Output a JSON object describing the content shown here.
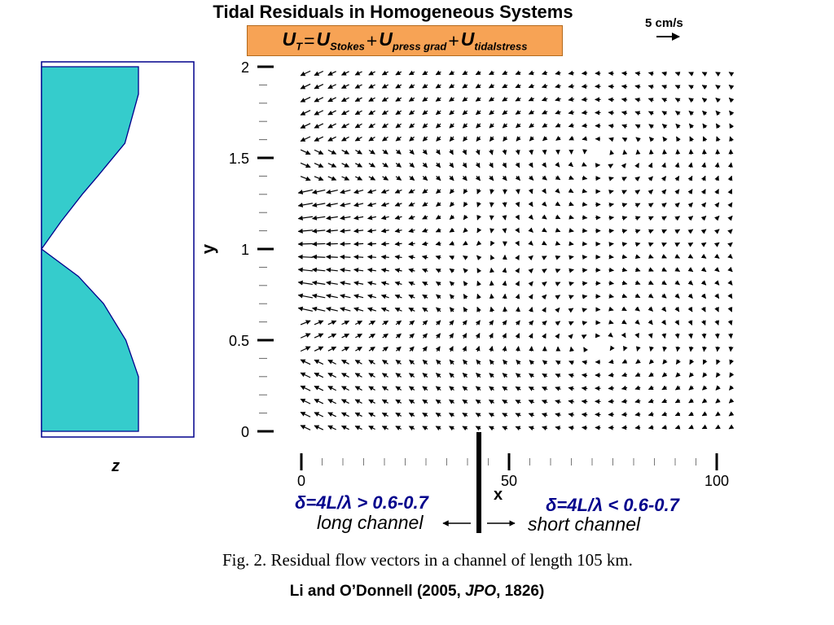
{
  "title": "Tidal Residuals in Homogeneous Systems",
  "equation": {
    "lhs_symbol": "U",
    "lhs_sub": "T",
    "eq_sign": "=",
    "terms": [
      {
        "symbol": "U",
        "sub": "Stokes"
      },
      {
        "symbol": "U",
        "sub": "press grad"
      },
      {
        "symbol": "U",
        "sub": "tidalstress"
      }
    ],
    "plus": "+"
  },
  "scale": {
    "label": "5 cm/s"
  },
  "depth_profile": {
    "axis_label": "z"
  },
  "colors": {
    "depth_fill": "#35cccc",
    "equation_bg": "#f7a355",
    "regime_text": "#00008c",
    "axis_blue": "#00008c"
  },
  "chart_data": {
    "type": "quiver",
    "title": "Tidal Residuals in Homogeneous Systems",
    "xlabel": "x",
    "ylabel": "y",
    "xlim": [
      0,
      105
    ],
    "ylim": [
      0,
      2
    ],
    "x_ticks": [
      "0",
      "50",
      "100"
    ],
    "y_ticks": [
      "0",
      "0.5",
      "1",
      "1.5",
      "2"
    ],
    "divider_x": 42,
    "depth_profile_points": [
      {
        "y": 0.0,
        "depth": 1.0
      },
      {
        "y": 0.3,
        "depth": 1.0
      },
      {
        "y": 0.5,
        "depth": 0.87
      },
      {
        "y": 0.7,
        "depth": 0.64
      },
      {
        "y": 0.85,
        "depth": 0.38
      },
      {
        "y": 1.0,
        "depth": 0.0
      },
      {
        "y": 1.15,
        "depth": 0.2
      },
      {
        "y": 1.3,
        "depth": 0.42
      },
      {
        "y": 1.4,
        "depth": 0.58
      },
      {
        "y": 1.58,
        "depth": 0.86
      },
      {
        "y": 1.85,
        "depth": 1.0
      },
      {
        "y": 2.0,
        "depth": 1.0
      }
    ]
  },
  "annotations": {
    "regime_left": "δ=4L/λ > 0.6-0.7",
    "regime_right": "δ=4L/λ < 0.6-0.7",
    "channel_left": "long channel",
    "channel_right": "short channel"
  },
  "caption": "Fig. 2. Residual flow vectors in a channel of length 105 km.",
  "citation": {
    "prefix": "Li and O’Donnell (2005, ",
    "journal": "JPO",
    "suffix": ", 1826)"
  }
}
